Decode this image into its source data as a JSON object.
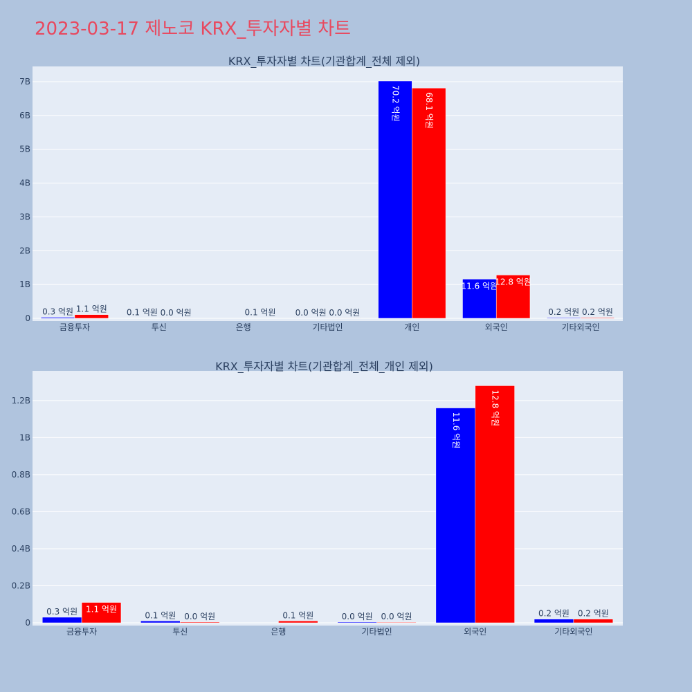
{
  "page_title": "2023-03-17 제노코 KRX_투자자별 차트",
  "colors": {
    "buy": "#0000ff",
    "sell": "#ff0000",
    "title": "#e8495f",
    "plot_bg": "#e5ecf6",
    "page_bg": "#b0c4de"
  },
  "chart_data": [
    {
      "type": "bar",
      "title": "KRX_투자자별 차트(기관합계_전체 제외)",
      "categories": [
        "금융투자",
        "투신",
        "은행",
        "기타법인",
        "개인",
        "외국인",
        "기타외국인"
      ],
      "yticks": [
        "0",
        "1B",
        "2B",
        "3B",
        "4B",
        "5B",
        "6B",
        "7B"
      ],
      "ylim": [
        0,
        7450000000
      ],
      "grid": true,
      "series": [
        {
          "color": "#0000ff",
          "values": [
            30000000,
            10000000,
            0,
            4000000,
            7020000000,
            1160000000,
            20000000
          ],
          "labels": [
            "0.3 억원",
            "0.1 억원",
            "",
            "0.0 억원",
            "70.2 억원",
            "11.6 억원",
            "0.2 억원"
          ]
        },
        {
          "color": "#ff0000",
          "values": [
            110000000,
            4000000,
            10000000,
            3000000,
            6810000000,
            1280000000,
            20000000
          ],
          "labels": [
            "1.1 억원",
            "0.0 억원",
            "0.1 억원",
            "0.0 억원",
            "68.1 억원",
            "12.8 억원",
            "0.2 억원"
          ]
        }
      ]
    },
    {
      "type": "bar",
      "title": "KRX_투자자별 차트(기관합계_전체_개인 제외)",
      "categories": [
        "금융투자",
        "투신",
        "은행",
        "기타법인",
        "외국인",
        "기타외국인"
      ],
      "yticks": [
        "0",
        "0.2B",
        "0.4B",
        "0.6B",
        "0.8B",
        "1B",
        "1.2B"
      ],
      "ylim": [
        0,
        1360000000
      ],
      "grid": true,
      "series": [
        {
          "color": "#0000ff",
          "values": [
            30000000,
            10000000,
            0,
            4000000,
            1160000000,
            20000000
          ],
          "labels": [
            "0.3 억원",
            "0.1 억원",
            "",
            "0.0 억원",
            "11.6 억원",
            "0.2 억원"
          ]
        },
        {
          "color": "#ff0000",
          "values": [
            110000000,
            4000000,
            10000000,
            3000000,
            1280000000,
            20000000
          ],
          "labels": [
            "1.1 억원",
            "0.0 억원",
            "0.1 억원",
            "0.0 억원",
            "12.8 억원",
            "0.2 억원"
          ]
        }
      ]
    }
  ]
}
